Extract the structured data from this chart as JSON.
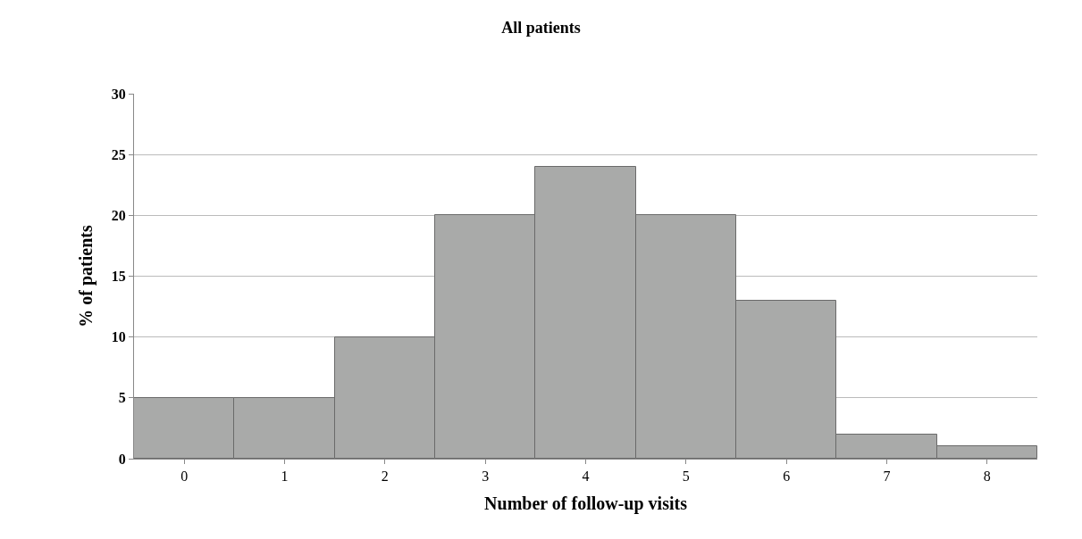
{
  "chart_data": {
    "type": "bar",
    "title": "All patients",
    "xlabel": "Number of follow-up visits",
    "ylabel": "% of patients",
    "categories": [
      "0",
      "1",
      "2",
      "3",
      "4",
      "5",
      "6",
      "7",
      "8"
    ],
    "values": [
      5,
      5,
      10,
      20,
      24,
      20,
      13,
      2,
      1
    ],
    "color": "#a9aaa9",
    "ylim": [
      0,
      30
    ],
    "yticks": [
      0,
      5,
      10,
      15,
      20,
      25,
      30
    ],
    "grid": "y",
    "legend": false
  }
}
